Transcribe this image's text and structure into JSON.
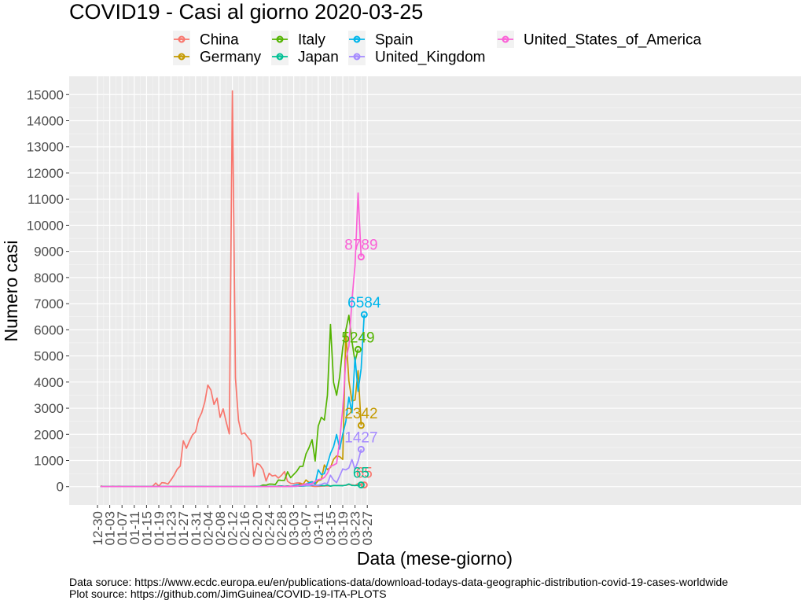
{
  "chart_data": {
    "type": "line",
    "title": "COVID19 - Casi al giorno 2020-03-25",
    "xlabel": "Data (mese-giorno)",
    "ylabel": "Numero casi",
    "x_start": "2019-12-31",
    "x_ticks": [
      "12-30",
      "01-03",
      "01-07",
      "01-11",
      "01-15",
      "01-19",
      "01-23",
      "01-27",
      "01-31",
      "02-04",
      "02-08",
      "02-12",
      "02-16",
      "02-20",
      "02-24",
      "02-28",
      "03-03",
      "03-07",
      "03-11",
      "03-15",
      "03-19",
      "03-23",
      "03-27"
    ],
    "ylim": [
      -700,
      15700
    ],
    "y_ticks": [
      0,
      1000,
      2000,
      3000,
      4000,
      5000,
      6000,
      7000,
      8000,
      9000,
      10000,
      11000,
      12000,
      13000,
      14000,
      15000
    ],
    "grid": true,
    "legend_position": "top",
    "captions": [
      "Data soruce: https://www.ecdc.europa.eu/en/publications-data/download-todays-data-geographic-distribution-covid-19-cases-worldwide",
      "Plot source: https://github.com/JimGuinea/COVID-19-ITA-PLOTS"
    ],
    "series": [
      {
        "name": "China",
        "color": "#F8766D",
        "end_label": "65",
        "start": "2019-12-31",
        "values": [
          27,
          0,
          0,
          0,
          17,
          0,
          15,
          0,
          0,
          0,
          0,
          0,
          1,
          0,
          0,
          0,
          4,
          17,
          136,
          19,
          151,
          140,
          97,
          259,
          441,
          665,
          787,
          1753,
          1466,
          1740,
          1980,
          2095,
          2590,
          2827,
          3235,
          3887,
          3694,
          3143,
          3385,
          2652,
          2973,
          2467,
          2015,
          15141,
          4156,
          2538,
          2007,
          2052,
          1890,
          1750,
          394,
          889,
          826,
          648,
          214,
          508,
          406,
          433,
          327,
          427,
          573,
          202,
          125,
          119,
          139,
          143,
          99,
          44,
          40,
          19,
          8,
          11,
          20,
          25,
          27,
          21,
          39,
          41,
          46,
          46,
          47,
          78,
          67,
          39,
          115,
          78,
          65
        ]
      },
      {
        "name": "Germany",
        "color": "#C49A00",
        "end_label": "2342",
        "start": "2019-12-31",
        "values": [
          0,
          0,
          0,
          0,
          0,
          0,
          0,
          0,
          0,
          0,
          0,
          0,
          0,
          0,
          0,
          0,
          0,
          0,
          0,
          0,
          0,
          0,
          0,
          0,
          0,
          0,
          0,
          0,
          1,
          3,
          0,
          0,
          2,
          0,
          2,
          2,
          0,
          0,
          0,
          0,
          0,
          0,
          0,
          0,
          0,
          0,
          0,
          0,
          0,
          0,
          0,
          0,
          0,
          0,
          0,
          0,
          4,
          0,
          26,
          20,
          10,
          28,
          16,
          18,
          23,
          116,
          75,
          254,
          160,
          190,
          90,
          226,
          270,
          828,
          651,
          733,
          1043,
          1174,
          1144,
          1042,
          5940,
          4049,
          3276,
          3311,
          4438,
          2342
        ]
      },
      {
        "name": "Italy",
        "color": "#53B400",
        "end_label": "5249",
        "start": "2019-12-31",
        "values": [
          0,
          0,
          0,
          0,
          0,
          0,
          0,
          0,
          0,
          0,
          0,
          0,
          0,
          0,
          0,
          0,
          0,
          0,
          0,
          0,
          0,
          0,
          0,
          0,
          0,
          0,
          0,
          0,
          0,
          0,
          0,
          2,
          0,
          0,
          0,
          0,
          0,
          0,
          0,
          1,
          0,
          0,
          0,
          0,
          0,
          0,
          0,
          0,
          0,
          0,
          0,
          0,
          14,
          62,
          53,
          97,
          93,
          78,
          250,
          238,
          240,
          566,
          342,
          466,
          587,
          769,
          778,
          1247,
          1492,
          1797,
          977,
          2313,
          2651,
          2547,
          3497,
          6203,
          3988,
          3497,
          4207,
          5322,
          5986,
          6557,
          5560,
          4789,
          5249
        ]
      },
      {
        "name": "Japan",
        "color": "#00C094",
        "end_label": "65",
        "start": "2019-12-31",
        "values": [
          0,
          0,
          0,
          0,
          0,
          0,
          0,
          0,
          0,
          0,
          0,
          0,
          0,
          0,
          0,
          1,
          0,
          0,
          0,
          0,
          0,
          0,
          0,
          0,
          0,
          0,
          2,
          2,
          1,
          0,
          0,
          0,
          3,
          4,
          2,
          0,
          0,
          0,
          0,
          0,
          0,
          0,
          0,
          0,
          0,
          0,
          0,
          0,
          0,
          4,
          6,
          12,
          17,
          7,
          5,
          9,
          13,
          10,
          12,
          25,
          15,
          21,
          13,
          12,
          19,
          20,
          20,
          33,
          32,
          52,
          52,
          41,
          43,
          31,
          62,
          15,
          44,
          39,
          36,
          34,
          54,
          99,
          42,
          46,
          39,
          65
        ]
      },
      {
        "name": "Spain",
        "color": "#00B6EB",
        "end_label": "6584",
        "start": "2019-12-31",
        "values": [
          0,
          0,
          0,
          0,
          0,
          0,
          0,
          0,
          0,
          0,
          0,
          0,
          0,
          0,
          0,
          0,
          0,
          0,
          0,
          0,
          0,
          0,
          0,
          0,
          0,
          0,
          0,
          0,
          0,
          0,
          0,
          0,
          1,
          0,
          0,
          0,
          0,
          0,
          0,
          0,
          1,
          0,
          0,
          0,
          0,
          0,
          0,
          0,
          0,
          0,
          0,
          0,
          0,
          0,
          0,
          0,
          0,
          0,
          2,
          1,
          9,
          13,
          11,
          43,
          69,
          62,
          14,
          104,
          150,
          183,
          116,
          642,
          461,
          496,
          867,
          1266,
          1527,
          1993,
          1438,
          2006,
          2489,
          3423,
          2826,
          4946,
          3646,
          4517,
          6584
        ]
      },
      {
        "name": "United_Kingdom",
        "color": "#A58AFF",
        "end_label": "1427",
        "start": "2019-12-31",
        "values": [
          0,
          0,
          0,
          0,
          0,
          0,
          0,
          0,
          0,
          0,
          0,
          0,
          0,
          0,
          0,
          0,
          0,
          0,
          0,
          0,
          0,
          0,
          0,
          0,
          0,
          0,
          0,
          0,
          0,
          0,
          0,
          0,
          2,
          0,
          0,
          0,
          0,
          0,
          0,
          0,
          1,
          4,
          0,
          0,
          0,
          0,
          0,
          0,
          0,
          0,
          0,
          0,
          0,
          0,
          4,
          0,
          0,
          0,
          0,
          0,
          3,
          0,
          4,
          13,
          11,
          34,
          30,
          48,
          43,
          67,
          48,
          52,
          83,
          134,
          117,
          433,
          251,
          152,
          407,
          676,
          643,
          714,
          1035,
          665,
          967,
          1427
        ]
      },
      {
        "name": "United_States_of_America",
        "color": "#FB61D7",
        "end_label": "8789",
        "start": "2019-12-31",
        "values": [
          0,
          0,
          0,
          0,
          0,
          0,
          0,
          0,
          0,
          0,
          0,
          0,
          0,
          0,
          0,
          0,
          0,
          0,
          0,
          0,
          0,
          1,
          0,
          1,
          0,
          0,
          2,
          0,
          0,
          0,
          1,
          0,
          1,
          0,
          0,
          2,
          0,
          0,
          0,
          0,
          0,
          1,
          0,
          0,
          0,
          0,
          0,
          0,
          0,
          0,
          0,
          0,
          0,
          0,
          0,
          0,
          0,
          0,
          0,
          0,
          6,
          3,
          20,
          14,
          22,
          34,
          74,
          105,
          95,
          121,
          200,
          271,
          287,
          351,
          511,
          777,
          823,
          887,
          1766,
          2988,
          4835,
          5374,
          7123,
          8459,
          11236,
          8789
        ]
      }
    ]
  }
}
